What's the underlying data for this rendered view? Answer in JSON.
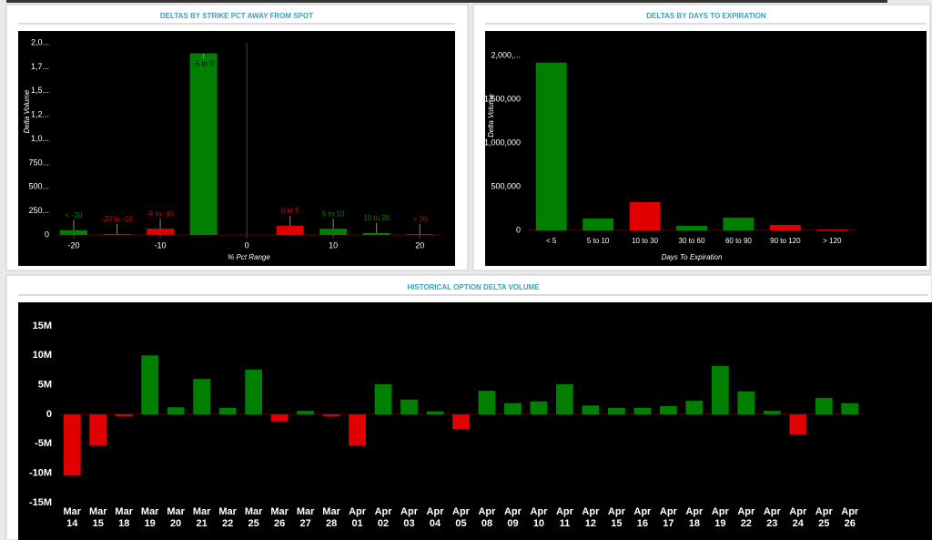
{
  "chart_data": [
    {
      "type": "bar",
      "title": "DELTAS BY STRIKE PCT AWAY FROM SPOT",
      "x_label": "% Pct Range",
      "y_label": "Delta Volume",
      "x": [
        -20,
        -15,
        -10,
        -5,
        5,
        10,
        15,
        20
      ],
      "categories": [
        "< -20",
        "-20 to -10",
        "-5 to -10",
        "-5 to 0",
        "0 to 5",
        "5 to 10",
        "10 to 20",
        "> 20"
      ],
      "values": [
        50000,
        10000,
        65000,
        1890000,
        95000,
        65000,
        20000,
        8000
      ],
      "colors": [
        "#008000",
        "#e00000",
        "#e00000",
        "#008000",
        "#e00000",
        "#008000",
        "#008000",
        "#e00000"
      ],
      "xlim": [
        -22,
        22.5
      ],
      "xticks": [
        -20,
        -10,
        0,
        10,
        20
      ],
      "ylim": [
        0,
        2000000
      ],
      "yticks": [
        0,
        {
          "value": 250000,
          "label": "250..."
        },
        {
          "value": 500000,
          "label": "500..."
        },
        {
          "value": 750000,
          "label": "750..."
        },
        {
          "value": 1000000,
          "label": "1,0..."
        },
        {
          "value": 1250000,
          "label": "1,2..."
        },
        {
          "value": 1500000,
          "label": "1,5..."
        },
        {
          "value": 1750000,
          "label": "1,7..."
        },
        {
          "value": 2000000,
          "label": "2,0..."
        }
      ]
    },
    {
      "type": "bar",
      "title": "DELTAS BY DAYS TO EXPIRATION",
      "x_label": "Days To Expiration",
      "y_label": "Delta Volume",
      "categories": [
        "< 5",
        "5 to 10",
        "10 to 30",
        "30 to 60",
        "60 to 90",
        "90 to 120",
        "> 120"
      ],
      "values": [
        1920000,
        135000,
        323000,
        52000,
        146000,
        62000,
        10000
      ],
      "colors": [
        "#008000",
        "#008000",
        "#e00000",
        "#008000",
        "#008000",
        "#e00000",
        "#e00000"
      ],
      "ylim": [
        0,
        2000000
      ],
      "yticks": [
        0,
        {
          "value": 500000,
          "label": "500,000"
        },
        {
          "value": 1000000,
          "label": "1,000,000"
        },
        {
          "value": 1500000,
          "label": "1,500,000"
        },
        {
          "value": 2000000,
          "label": "2,000,..."
        }
      ]
    },
    {
      "type": "bar",
      "title": "HISTORICAL OPTION DELTA VOLUME",
      "categories": [
        "Mar 14",
        "Mar 15",
        "Mar 18",
        "Mar 19",
        "Mar 20",
        "Mar 21",
        "Mar 22",
        "Mar 25",
        "Mar 26",
        "Mar 27",
        "Mar 28",
        "Apr 01",
        "Apr 02",
        "Apr 03",
        "Apr 04",
        "Apr 05",
        "Apr 08",
        "Apr 09",
        "Apr 10",
        "Apr 11",
        "Apr 12",
        "Apr 15",
        "Apr 16",
        "Apr 17",
        "Apr 18",
        "Apr 19",
        "Apr 22",
        "Apr 23",
        "Apr 24",
        "Apr 25",
        "Apr 26"
      ],
      "values": [
        -10400000,
        -5300000,
        -300000,
        10000000,
        1200000,
        6000000,
        1100000,
        7600000,
        -1200000,
        600000,
        -300000,
        -5300000,
        5100000,
        2500000,
        500000,
        -2500000,
        4000000,
        1900000,
        2200000,
        5100000,
        1500000,
        1100000,
        1100000,
        1400000,
        2300000,
        8200000,
        3900000,
        600000,
        -3400000,
        2800000,
        1900000
      ],
      "colors": [
        "#e00000",
        "#e00000",
        "#e00000",
        "#008000",
        "#008000",
        "#008000",
        "#008000",
        "#008000",
        "#e00000",
        "#008000",
        "#e00000",
        "#e00000",
        "#008000",
        "#008000",
        "#008000",
        "#e00000",
        "#008000",
        "#008000",
        "#008000",
        "#008000",
        "#008000",
        "#008000",
        "#008000",
        "#008000",
        "#008000",
        "#008000",
        "#008000",
        "#008000",
        "#e00000",
        "#008000",
        "#008000"
      ],
      "ylim": [
        -15000000,
        15000000
      ],
      "yticks": [
        {
          "value": -15000000,
          "label": "-15M"
        },
        {
          "value": -10000000,
          "label": "-10M"
        },
        {
          "value": -5000000,
          "label": "-5M"
        },
        0,
        {
          "value": 5000000,
          "label": "5M"
        },
        {
          "value": 10000000,
          "label": "10M"
        },
        {
          "value": 15000000,
          "label": "15M"
        }
      ]
    }
  ]
}
